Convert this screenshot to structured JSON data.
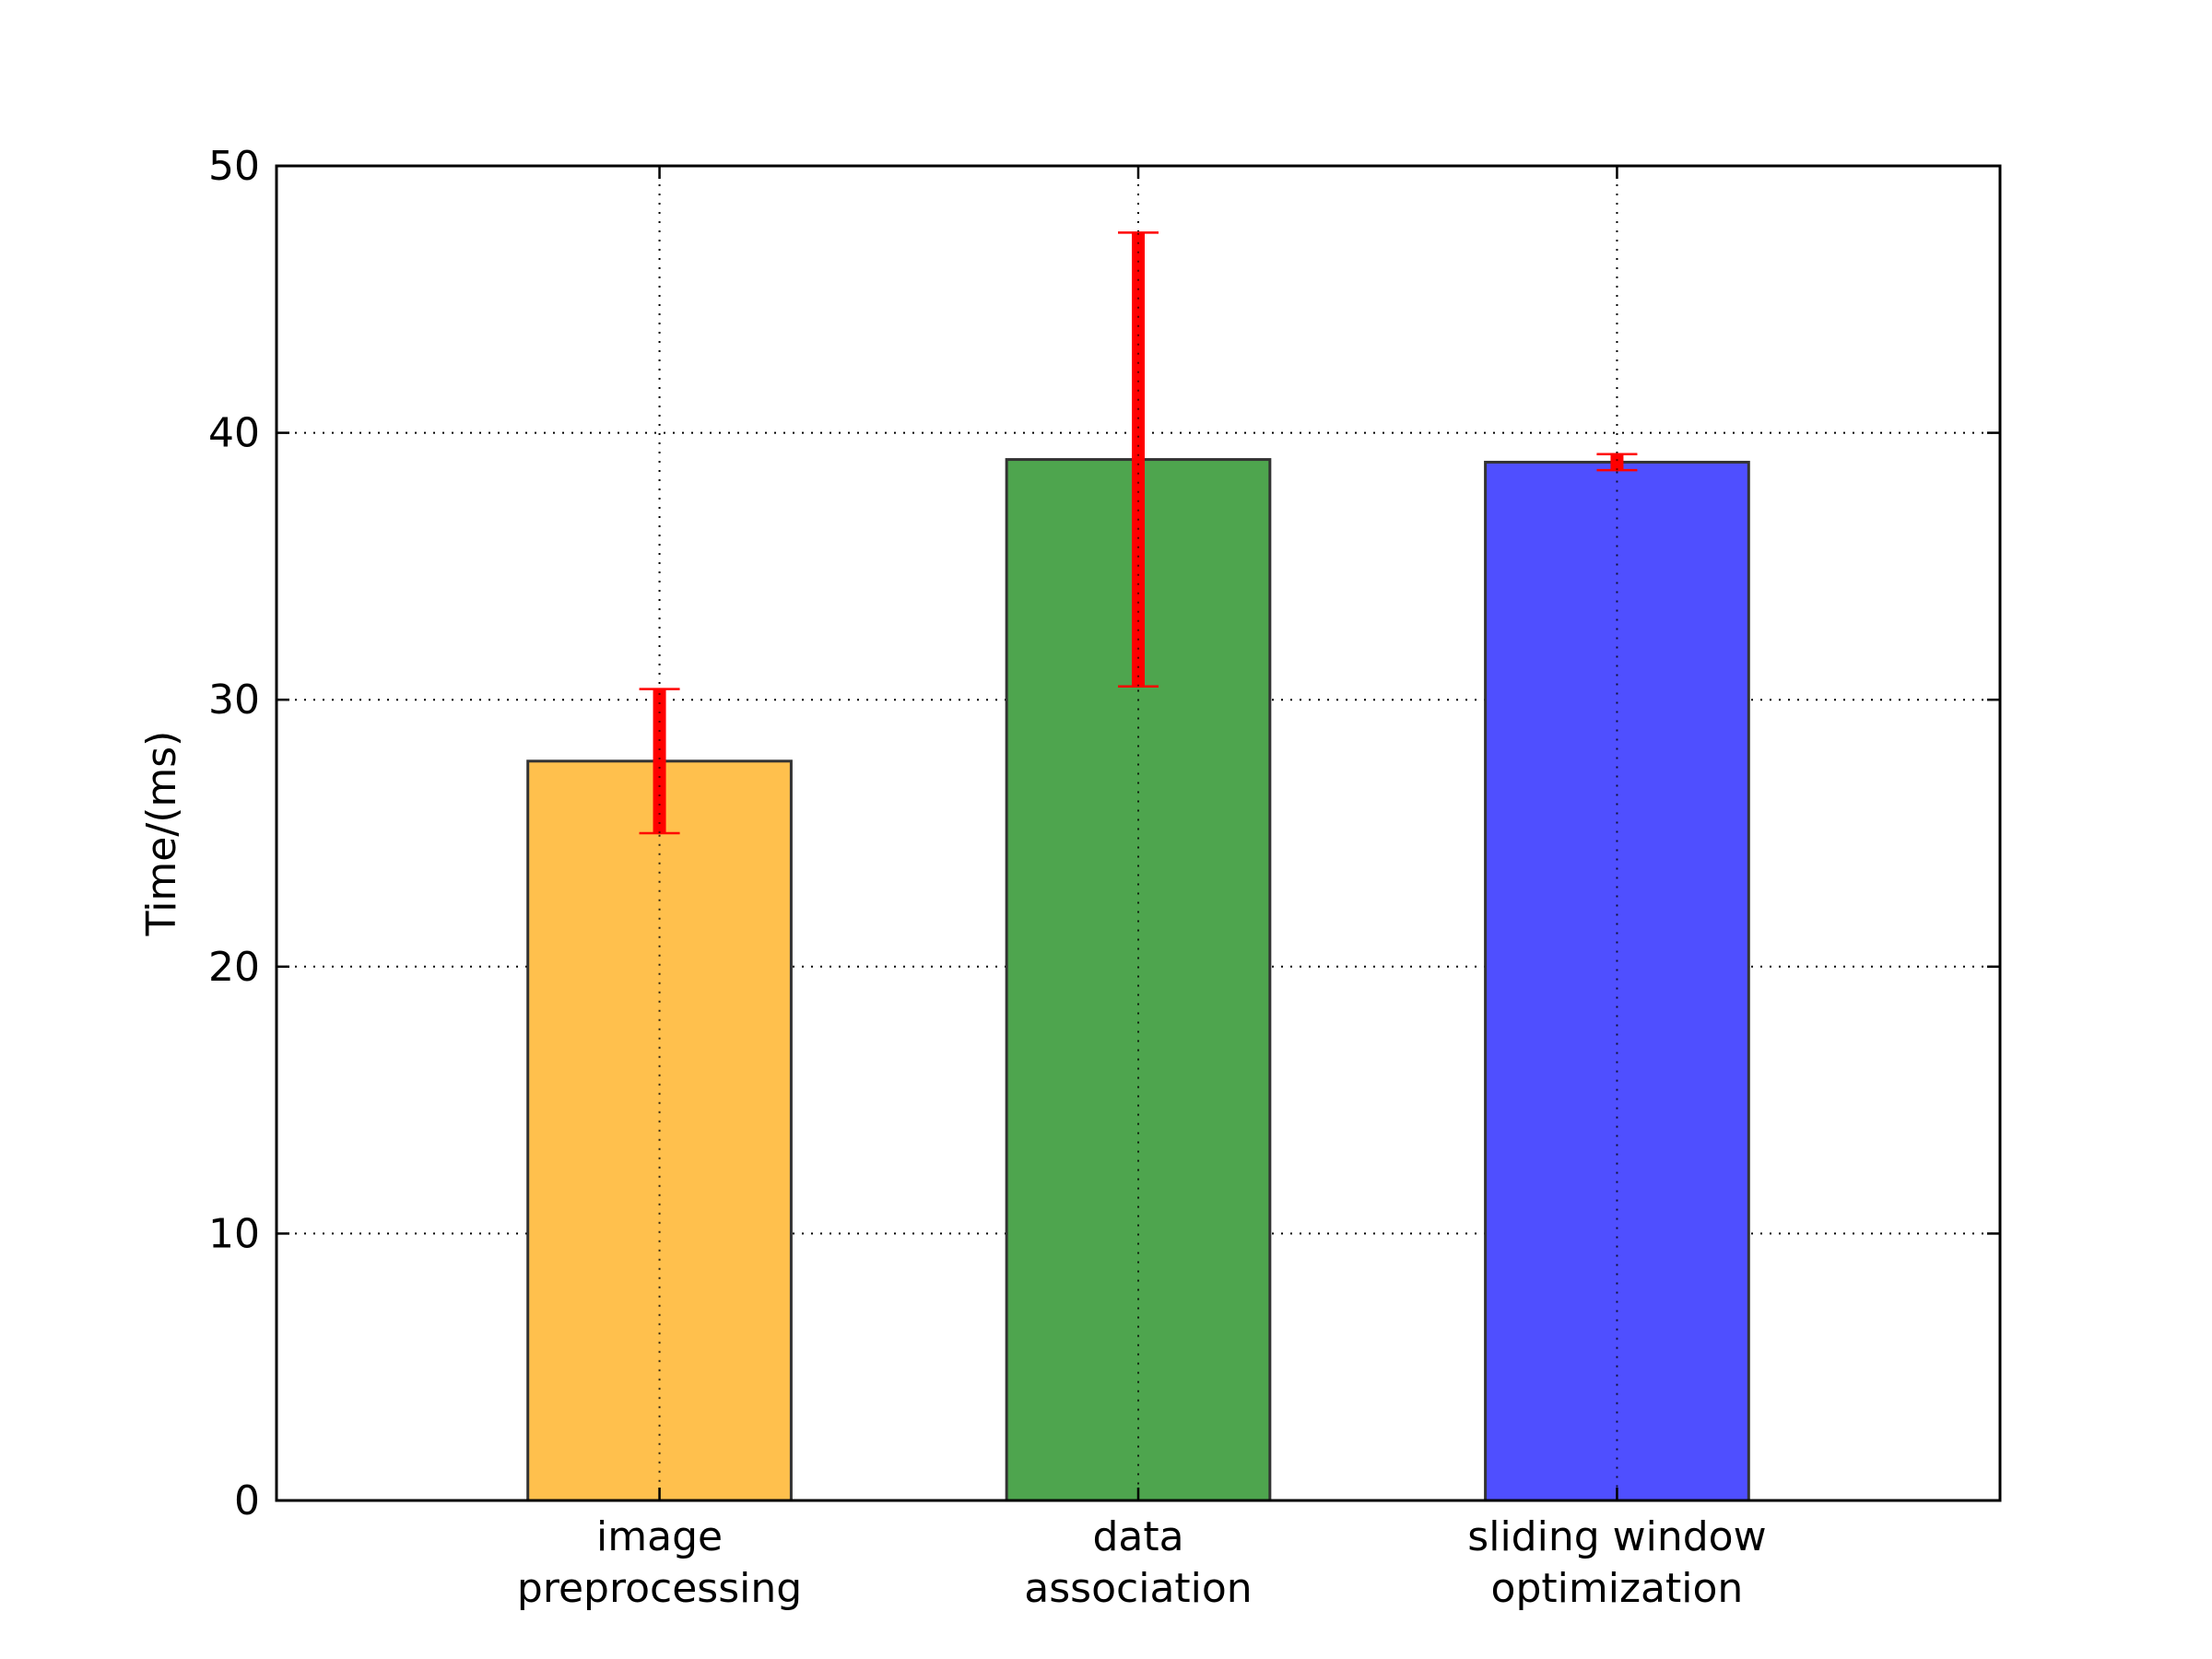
{
  "chart_data": {
    "type": "bar",
    "categories": [
      [
        "image",
        "preprocessing"
      ],
      [
        "data",
        "association"
      ],
      [
        "sliding window",
        "optimization"
      ]
    ],
    "values": [
      27.7,
      39.0,
      38.9
    ],
    "error_low": [
      25.0,
      30.5,
      38.6
    ],
    "error_high": [
      30.4,
      47.5,
      39.2
    ],
    "bar_colors": [
      "#FFC04D",
      "#4EA54E",
      "#4F4FFF"
    ],
    "error_color": "#FF0000",
    "xlabel": "",
    "ylabel": "Time/(ms)",
    "ylim": [
      0,
      50
    ],
    "yticks": [
      "0",
      "10",
      "20",
      "30",
      "40",
      "50"
    ],
    "grid": true
  }
}
